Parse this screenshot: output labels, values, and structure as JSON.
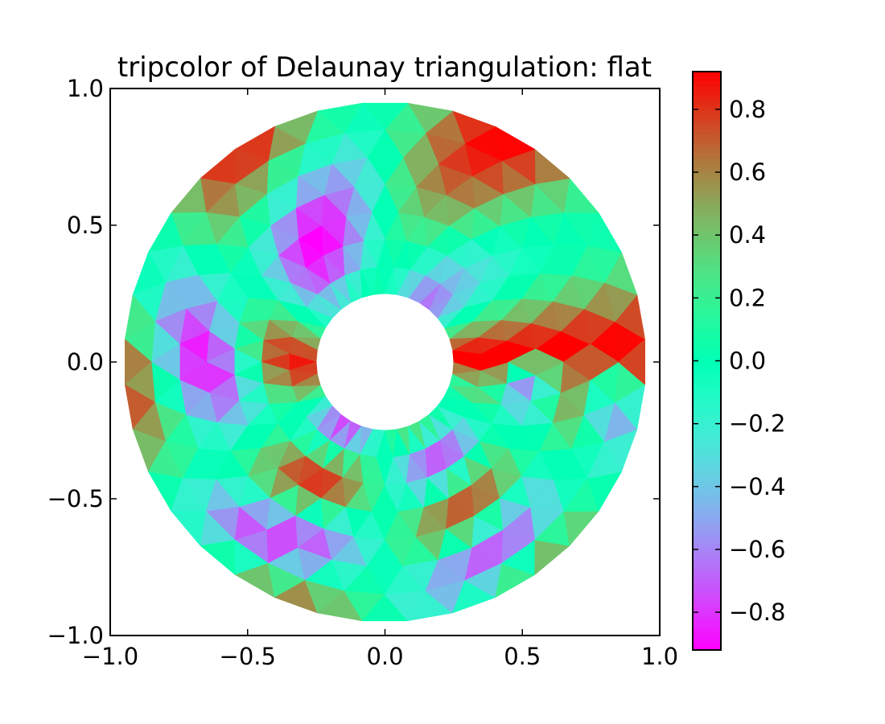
{
  "chart_data": {
    "type": "heatmap",
    "title": "tripcolor of Delaunay triangulation: flat",
    "xlabel": "",
    "ylabel": "",
    "xlim": [
      -1.0,
      1.0
    ],
    "ylim": [
      -1.0,
      1.0
    ],
    "x_ticks": [
      -1.0,
      -0.5,
      0.0,
      0.5,
      1.0
    ],
    "x_tick_labels": [
      "−1.0",
      "−0.5",
      "0.0",
      "0.5",
      "1.0"
    ],
    "y_ticks": [
      -1.0,
      -0.5,
      0.0,
      0.5,
      1.0
    ],
    "y_tick_labels": [
      "−1.0",
      "−0.5",
      "0.0",
      "0.5",
      "1.0"
    ],
    "grid": false,
    "shading": "flat",
    "domain": {
      "shape": "annulus",
      "min_radius": 0.25,
      "max_radius": 0.95,
      "n_radii": 8,
      "n_angles": 36
    },
    "field": "cos(3*angle) * cos(3*radius*angle)",
    "colormap": "rainbow",
    "colorbar": {
      "vmin": -0.92,
      "vmax": 0.92,
      "ticks": [
        -0.8,
        -0.6,
        -0.4,
        -0.2,
        0.0,
        0.2,
        0.4,
        0.6,
        0.8
      ],
      "tick_labels": [
        "−0.8",
        "−0.6",
        "−0.4",
        "−0.2",
        "0.0",
        "0.2",
        "0.4",
        "0.6",
        "0.8"
      ],
      "placement": "right"
    }
  }
}
